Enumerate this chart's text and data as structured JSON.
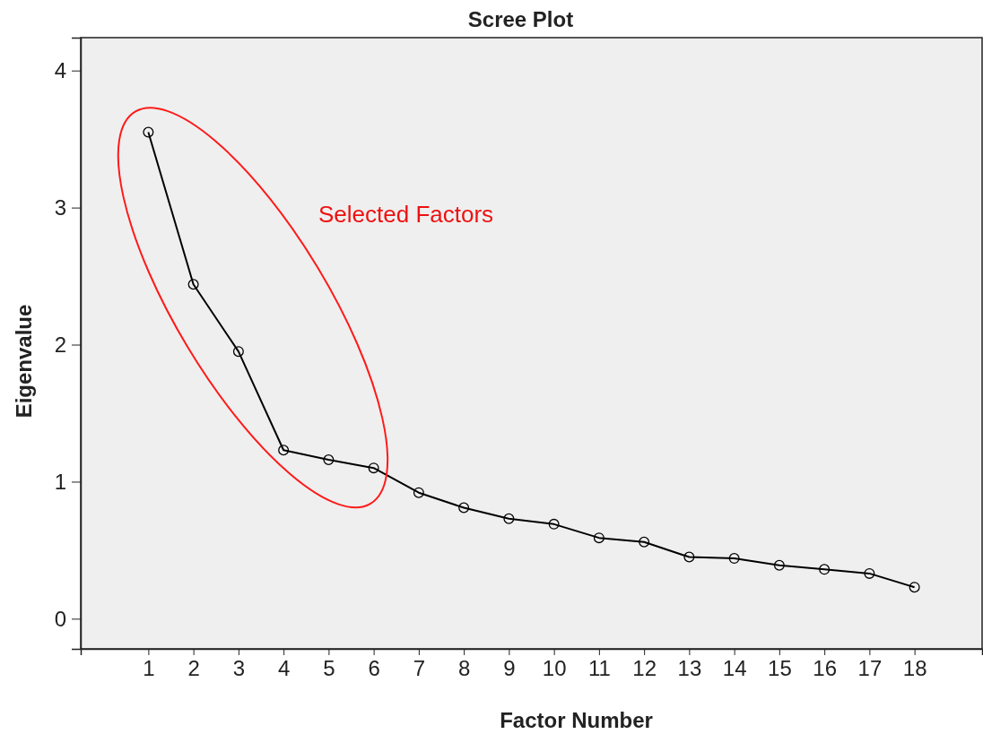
{
  "chart_data": {
    "type": "line",
    "title": "Scree Plot",
    "xlabel": "Factor Number",
    "ylabel": "Eigenvalue",
    "x": [
      1,
      2,
      3,
      4,
      5,
      6,
      7,
      8,
      9,
      10,
      11,
      12,
      13,
      14,
      15,
      16,
      17,
      18
    ],
    "series": [
      {
        "color": "#000000",
        "values": [
          3.55,
          2.44,
          1.95,
          1.23,
          1.16,
          1.1,
          0.92,
          0.81,
          0.73,
          0.69,
          0.59,
          0.56,
          0.45,
          0.44,
          0.39,
          0.36,
          0.33,
          0.23
        ]
      }
    ],
    "xlim": [
      -0.5,
      19.5
    ],
    "xticks": [
      1,
      2,
      3,
      4,
      5,
      6,
      7,
      8,
      9,
      10,
      11,
      12,
      13,
      14,
      15,
      16,
      17,
      18
    ],
    "ylim": [
      -0.22,
      4.24
    ],
    "yticks": [
      0,
      1,
      2,
      3,
      4
    ],
    "marker": "circle",
    "line_style": "solid",
    "grid": false,
    "annotations": [
      "Selected Factors"
    ]
  }
}
